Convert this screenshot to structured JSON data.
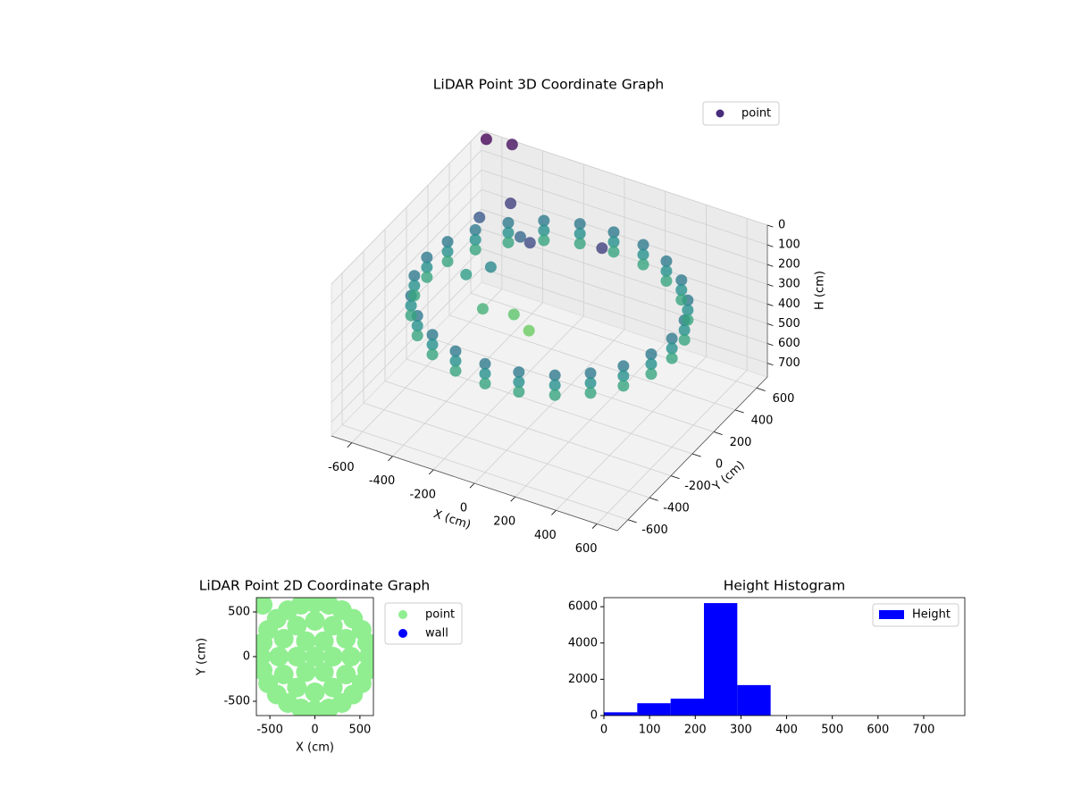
{
  "chart_data": [
    {
      "type": "scatter3d",
      "title": "LiDAR Point 3D Coordinate Graph",
      "xlabel": "X (cm)",
      "ylabel": "Y (cm)",
      "zlabel": "H (cm)",
      "xlim": [
        -700,
        700
      ],
      "ylim": [
        -700,
        700
      ],
      "zlim": [
        0,
        770
      ],
      "z_inverted": true,
      "xticks": [
        -600,
        -400,
        -200,
        0,
        200,
        400,
        600
      ],
      "yticks": [
        -600,
        -400,
        -200,
        0,
        200,
        400,
        600
      ],
      "zticks": [
        0,
        100,
        200,
        300,
        400,
        500,
        600,
        700
      ],
      "grid": true,
      "legend": "upper right",
      "colormap": [
        "#440154",
        "#3b528b",
        "#21918c",
        "#5ec962",
        "#fde725"
      ],
      "series": [
        {
          "name": "point",
          "legend_color": "#472d7b",
          "x": [
            600,
            580,
            520,
            424,
            300,
            155,
            0,
            -155,
            -300,
            -424,
            -520,
            -580,
            -600,
            -580,
            -520,
            -424,
            -300,
            -155,
            0,
            155,
            300,
            424,
            520,
            580,
            600,
            580,
            520,
            424,
            300,
            155,
            0,
            -155,
            -300,
            -424,
            -520,
            -580,
            -600,
            -580,
            -520,
            -424,
            -300,
            -155,
            0,
            155,
            300,
            424,
            520,
            580,
            600,
            580,
            520,
            424,
            300,
            155,
            0,
            -155,
            -300,
            -424,
            -520,
            -580,
            -600,
            -580,
            -520,
            -424,
            -300,
            -155,
            0,
            155,
            300,
            424,
            520,
            580,
            -450,
            -350,
            -300,
            -200,
            -100,
            -500,
            -400,
            -300,
            -650,
            -550,
            100,
            -200
          ],
          "y": [
            0,
            155,
            300,
            424,
            520,
            580,
            600,
            580,
            520,
            424,
            300,
            155,
            0,
            -155,
            -300,
            -424,
            -520,
            -580,
            -600,
            -580,
            -520,
            -424,
            -300,
            -155,
            0,
            155,
            300,
            424,
            520,
            580,
            600,
            580,
            520,
            424,
            300,
            155,
            0,
            -155,
            -300,
            -424,
            -520,
            -580,
            -600,
            -580,
            -520,
            -424,
            -300,
            -155,
            0,
            155,
            300,
            424,
            520,
            580,
            600,
            580,
            520,
            424,
            300,
            155,
            0,
            -155,
            -300,
            -424,
            -520,
            -580,
            -600,
            -580,
            -520,
            -424,
            -300,
            -155,
            80,
            120,
            -50,
            50,
            0,
            300,
            400,
            300,
            650,
            700,
            300,
            200
          ],
          "h": [
            220,
            220,
            220,
            220,
            220,
            220,
            220,
            220,
            220,
            220,
            220,
            220,
            220,
            220,
            220,
            220,
            220,
            220,
            220,
            220,
            220,
            220,
            220,
            220,
            270,
            270,
            270,
            270,
            270,
            270,
            270,
            270,
            270,
            270,
            270,
            270,
            270,
            270,
            270,
            270,
            270,
            270,
            270,
            270,
            270,
            270,
            270,
            270,
            320,
            320,
            320,
            320,
            320,
            320,
            320,
            320,
            320,
            320,
            320,
            320,
            320,
            320,
            320,
            320,
            320,
            320,
            320,
            320,
            320,
            320,
            320,
            320,
            300,
            250,
            350,
            400,
            420,
            150,
            100,
            180,
            0,
            20,
            100,
            120
          ]
        }
      ]
    },
    {
      "type": "scatter",
      "title": "LiDAR Point 2D Coordinate Graph",
      "xlabel": "X (cm)",
      "ylabel": "Y (cm)",
      "xlim": [
        -650,
        650
      ],
      "ylim": [
        -660,
        660
      ],
      "xticks": [
        -500,
        0,
        500
      ],
      "yticks": [
        -500,
        0,
        500
      ],
      "legend": "outside upper right",
      "series": [
        {
          "name": "point",
          "color": "#90ee90",
          "x": [
            600,
            580,
            520,
            424,
            300,
            155,
            0,
            -155,
            -300,
            -424,
            -520,
            -580,
            -600,
            -580,
            -520,
            -424,
            -300,
            -155,
            0,
            155,
            300,
            424,
            520,
            580,
            400,
            346,
            200,
            0,
            -200,
            -346,
            -400,
            -346,
            -200,
            0,
            200,
            346,
            200,
            100,
            -100,
            -200,
            -100,
            100,
            0,
            -580
          ],
          "y": [
            0,
            155,
            300,
            424,
            520,
            580,
            600,
            580,
            520,
            424,
            300,
            155,
            0,
            -155,
            -300,
            -424,
            -520,
            -580,
            -600,
            -580,
            -520,
            -424,
            -300,
            -155,
            0,
            200,
            346,
            400,
            346,
            200,
            0,
            -200,
            -346,
            -400,
            -346,
            -200,
            0,
            173,
            173,
            0,
            -173,
            -173,
            0,
            580
          ]
        },
        {
          "name": "wall",
          "color": "#0000ff",
          "x": [],
          "y": []
        }
      ]
    },
    {
      "type": "histogram",
      "title": "Height Histogram",
      "xlim": [
        0,
        790
      ],
      "ylim": [
        0,
        6500
      ],
      "xticks": [
        0,
        100,
        200,
        300,
        400,
        500,
        600,
        700
      ],
      "yticks": [
        0,
        2000,
        4000,
        6000
      ],
      "legend": "upper right",
      "bins": [
        0,
        73,
        146,
        219,
        292,
        365,
        438,
        511,
        584,
        657,
        730
      ],
      "series": [
        {
          "name": "Height",
          "color": "#0000ff",
          "values": [
            180,
            680,
            930,
            6200,
            1680,
            0,
            0,
            0,
            0,
            0
          ]
        }
      ]
    }
  ]
}
